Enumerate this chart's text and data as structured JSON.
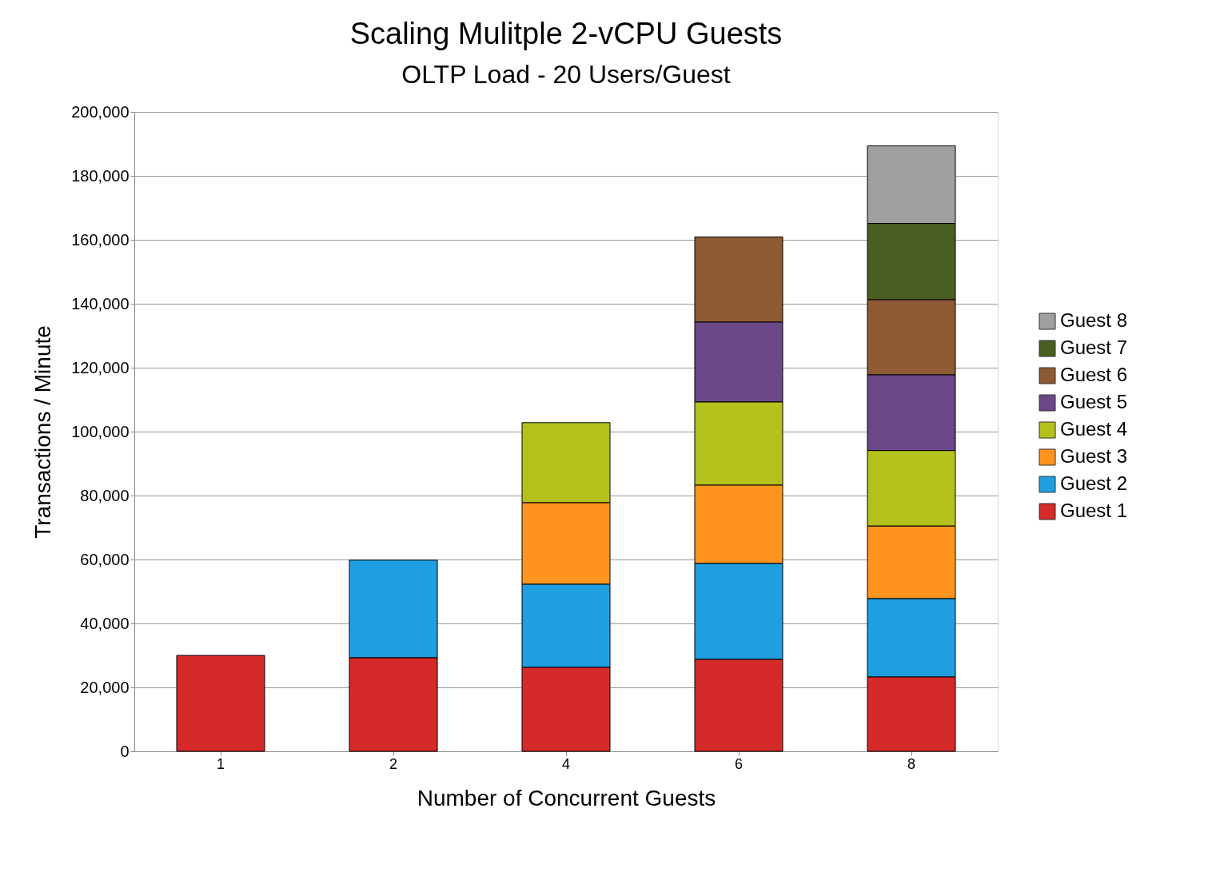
{
  "chart_data": {
    "type": "bar",
    "title": "Scaling Mulitple 2-vCPU Guests",
    "subtitle": "OLTP Load - 20 Users/Guest",
    "xlabel": "Number of Concurrent Guests",
    "ylabel": "Transactions / Minute",
    "categories": [
      "1",
      "2",
      "4",
      "6",
      "8"
    ],
    "stacked": true,
    "ylim": [
      0,
      200000
    ],
    "yticks": [
      0,
      {
        "value": 20000,
        "label": "20,000"
      },
      {
        "value": 40000,
        "label": "40,000"
      },
      {
        "value": 60000,
        "label": "60,000"
      },
      {
        "value": 80000,
        "label": "80,000"
      },
      {
        "value": 100000,
        "label": "100,000"
      },
      {
        "value": 120000,
        "label": "120,000"
      },
      {
        "value": 140000,
        "label": "140,000"
      },
      {
        "value": 160000,
        "label": "160,000"
      },
      {
        "value": 180000,
        "label": "180,000"
      },
      {
        "value": 200000,
        "label": "200,000"
      }
    ],
    "grid": "y",
    "legend": "right",
    "series": [
      {
        "name": "Guest 1",
        "color": "#d42a2a",
        "values": [
          30000,
          29300,
          26300,
          28800,
          23300
        ]
      },
      {
        "name": "Guest 2",
        "color": "#1f9ee0",
        "values": [
          null,
          30500,
          26000,
          30000,
          24500
        ]
      },
      {
        "name": "Guest 3",
        "color": "#ff951f",
        "values": [
          null,
          null,
          25500,
          24500,
          22700
        ]
      },
      {
        "name": "Guest 4",
        "color": "#b4c11d",
        "values": [
          null,
          null,
          25000,
          26000,
          23600
        ]
      },
      {
        "name": "Guest 5",
        "color": "#6b4787",
        "values": [
          null,
          null,
          null,
          25000,
          23700
        ]
      },
      {
        "name": "Guest 6",
        "color": "#8c5a33",
        "values": [
          null,
          null,
          null,
          26600,
          23500
        ]
      },
      {
        "name": "Guest 7",
        "color": "#4a5e22",
        "values": [
          null,
          null,
          null,
          null,
          23800
        ]
      },
      {
        "name": "Guest 8",
        "color": "#a0a0a0",
        "values": [
          null,
          null,
          null,
          null,
          24300
        ]
      }
    ]
  }
}
